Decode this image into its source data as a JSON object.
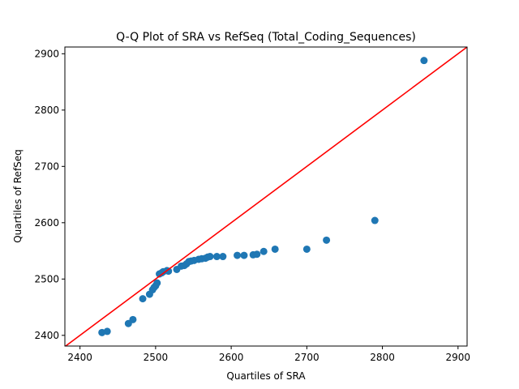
{
  "colors": {
    "background": "#ffffff",
    "points": "#1f77b4",
    "reference_line": "#ff0000",
    "axes": "#000000"
  },
  "chart_data": {
    "type": "scatter",
    "title": "Q-Q Plot of SRA vs RefSeq (Total_Coding_Sequences)",
    "xlabel": "Quartiles of SRA",
    "ylabel": "Quartiles of RefSeq",
    "xlim": [
      2380,
      2912
    ],
    "ylim": [
      2381,
      2912
    ],
    "x_ticks": [
      2400,
      2500,
      2600,
      2700,
      2800,
      2900
    ],
    "y_ticks": [
      2400,
      2500,
      2600,
      2700,
      2800,
      2900
    ],
    "x_tick_labels": [
      "2400",
      "2500",
      "2600",
      "2700",
      "2800",
      "2900"
    ],
    "y_tick_labels": [
      "2400",
      "2500",
      "2600",
      "2700",
      "2800",
      "2900"
    ],
    "grid": false,
    "legend": "none",
    "reference_line": {
      "type": "y=x"
    },
    "series": [
      {
        "x": [
          2429,
          2436,
          2464,
          2470,
          2483,
          2492,
          2496,
          2498,
          2500,
          2502,
          2505,
          2508,
          2510,
          2515,
          2517,
          2528,
          2534,
          2538,
          2541,
          2544,
          2547,
          2551,
          2557,
          2561,
          2566,
          2569,
          2572,
          2581,
          2589,
          2608,
          2617,
          2629,
          2634,
          2643,
          2658,
          2700,
          2726,
          2790,
          2855
        ],
        "y": [
          2405,
          2407,
          2421,
          2428,
          2465,
          2473,
          2481,
          2485,
          2488,
          2493,
          2509,
          2511,
          2513,
          2515,
          2514,
          2517,
          2523,
          2524,
          2527,
          2531,
          2532,
          2533,
          2535,
          2536,
          2537,
          2539,
          2540,
          2540,
          2540,
          2542,
          2542,
          2543,
          2544,
          2549,
          2553,
          2553,
          2569,
          2604,
          2888
        ]
      }
    ]
  }
}
